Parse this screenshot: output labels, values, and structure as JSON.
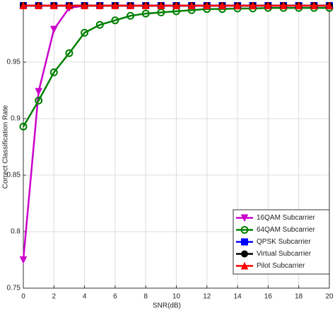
{
  "chart_data": {
    "type": "line",
    "x_label": "SNR(dB)",
    "y_label": "Correct Classification Rate",
    "x": [
      0,
      1,
      2,
      3,
      4,
      5,
      6,
      7,
      8,
      9,
      10,
      11,
      12,
      13,
      14,
      15,
      16,
      17,
      18,
      19,
      20
    ],
    "series": [
      {
        "name": "16QAM Subcarrier",
        "color": "#cc00cc",
        "marker": "triangle-down",
        "values": [
          0.775,
          0.924,
          0.979,
          0.998,
          1,
          1,
          1,
          1,
          1,
          1,
          1,
          1,
          1,
          1,
          1,
          1,
          1,
          1,
          1,
          1,
          1
        ]
      },
      {
        "name": "64QAM Subcarrier",
        "color": "#008000",
        "marker": "circle-open",
        "values": [
          0.893,
          0.916,
          0.941,
          0.958,
          0.976,
          0.983,
          0.987,
          0.991,
          0.993,
          0.994,
          0.995,
          0.996,
          0.997,
          0.997,
          0.9975,
          0.9975,
          0.998,
          0.998,
          0.998,
          0.998,
          0.998
        ]
      },
      {
        "name": "QPSK Subcarrier",
        "color": "#0000ff",
        "marker": "square",
        "values": [
          1,
          1,
          1,
          1,
          1,
          1,
          1,
          1,
          1,
          1,
          1,
          1,
          1,
          1,
          1,
          1,
          1,
          1,
          1,
          1,
          1
        ]
      },
      {
        "name": "Virtual Subcarrier",
        "color": "#000000",
        "marker": "circle",
        "values": [
          1,
          1,
          1,
          1,
          1,
          1,
          1,
          1,
          1,
          1,
          1,
          1,
          1,
          1,
          1,
          1,
          1,
          1,
          1,
          1,
          1
        ]
      },
      {
        "name": "Pilot Subcarrier",
        "color": "#ff0000",
        "marker": "triangle-up",
        "values": [
          1,
          1,
          1,
          1,
          1,
          1,
          1,
          1,
          1,
          1,
          1,
          1,
          1,
          1,
          1,
          1,
          1,
          1,
          1,
          1,
          1
        ]
      }
    ],
    "xlim": [
      0,
      20
    ],
    "xticks": [
      0,
      2,
      4,
      6,
      8,
      10,
      12,
      14,
      16,
      18,
      20
    ],
    "ylim": [
      0.75,
      1
    ],
    "yticks": [
      0.75,
      0.8,
      0.85,
      0.9,
      0.95
    ],
    "grid": true,
    "legend": "lower right"
  }
}
